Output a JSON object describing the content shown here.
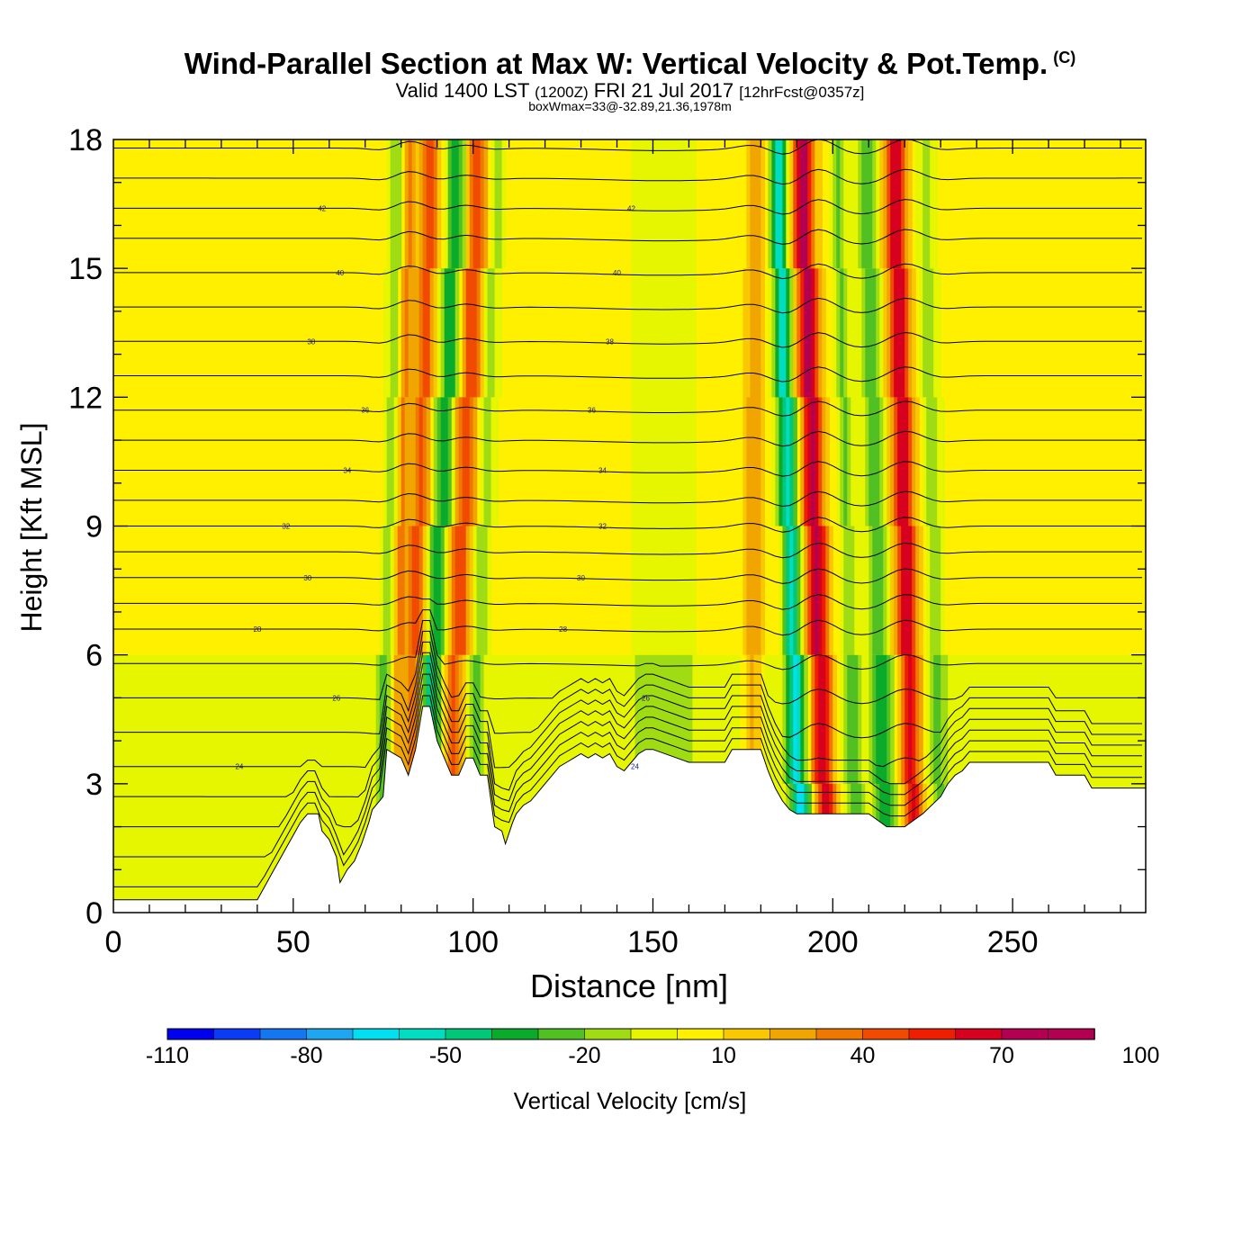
{
  "header": {
    "title": "Wind-Parallel Section at Max W: Vertical Velocity & Pot.Temp.",
    "copyright": "(C)",
    "valid_main": "Valid 1400 LST",
    "valid_z": "(1200Z)",
    "valid_date": "FRI 21 Jul 2017",
    "forecast": "[12hrFcst@0357z]",
    "box_info": "boxWmax=33@-32.89,21.36,1978m"
  },
  "chart_data": {
    "type": "heatmap",
    "title": "Wind-Parallel Section at Max W: Vertical Velocity & Pot.Temp.",
    "xlabel": "Distance [nm]",
    "ylabel": "Height [Kft MSL]",
    "xlim": [
      0,
      287
    ],
    "ylim": [
      0,
      18
    ],
    "x_ticks": [
      0,
      50,
      100,
      150,
      200,
      250
    ],
    "y_ticks": [
      0,
      3,
      6,
      9,
      12,
      15,
      18
    ],
    "background_w": 5,
    "updraft_columns": [
      {
        "x": 77,
        "w": -25,
        "half_width": 2.2,
        "tilt": 0.8
      },
      {
        "x": 80,
        "w": 30,
        "half_width": 2.0,
        "tilt": 0.9
      },
      {
        "x": 85,
        "w": 40,
        "half_width": 2.5,
        "tilt": 1.2
      },
      {
        "x": 91,
        "w": -45,
        "half_width": 2.8,
        "tilt": 1.8
      },
      {
        "x": 97,
        "w": 45,
        "half_width": 3.0,
        "tilt": 1.6
      },
      {
        "x": 103,
        "w": -20,
        "half_width": 2.5,
        "tilt": 1.4
      },
      {
        "x": 153,
        "w": -15,
        "half_width": 9.0,
        "tilt": 0.0
      },
      {
        "x": 178,
        "w": 25,
        "half_width": 2.5,
        "tilt": 0.3
      },
      {
        "x": 188,
        "w": -60,
        "half_width": 2.6,
        "tilt": -1.2
      },
      {
        "x": 195,
        "w": 70,
        "half_width": 3.0,
        "tilt": -1.3
      },
      {
        "x": 204,
        "w": -25,
        "half_width": 2.4,
        "tilt": -1.0
      },
      {
        "x": 212,
        "w": -35,
        "half_width": 2.8,
        "tilt": -1.1
      },
      {
        "x": 220,
        "w": 65,
        "half_width": 3.0,
        "tilt": -1.0
      },
      {
        "x": 228,
        "w": -20,
        "half_width": 2.6,
        "tilt": -0.8
      }
    ],
    "terrain_x": [
      0,
      40,
      42,
      44,
      46,
      48,
      50,
      52,
      54,
      57,
      58,
      60,
      62,
      63,
      65,
      67,
      69,
      71,
      72,
      75,
      76,
      80,
      82,
      84,
      86,
      88,
      90,
      92,
      94,
      96,
      98,
      100,
      102,
      104,
      106,
      108,
      109,
      111,
      112,
      114,
      116,
      118,
      120,
      122,
      124,
      126,
      128,
      130,
      132,
      134,
      136,
      138,
      140,
      142,
      144,
      146,
      148,
      150,
      160,
      170,
      172,
      176,
      180,
      182,
      184,
      186,
      188,
      190,
      195,
      200,
      205,
      210,
      215,
      220,
      225,
      230,
      232,
      234,
      236,
      238,
      240,
      243,
      245,
      250,
      260,
      262,
      270,
      272,
      287
    ],
    "terrain_y": [
      0.3,
      0.3,
      0.6,
      0.9,
      1.2,
      1.5,
      1.8,
      2.1,
      2.3,
      2.3,
      1.9,
      1.7,
      1.3,
      0.7,
      1.0,
      1.2,
      1.6,
      2.1,
      2.4,
      2.7,
      3.8,
      3.6,
      3.2,
      3.8,
      4.8,
      4.8,
      4.0,
      3.6,
      3.2,
      3.2,
      3.6,
      3.6,
      3.2,
      3.2,
      2.0,
      1.9,
      1.6,
      2.1,
      2.3,
      2.5,
      2.6,
      2.8,
      3.0,
      3.2,
      3.4,
      3.5,
      3.6,
      3.7,
      3.6,
      3.7,
      3.6,
      3.7,
      3.4,
      3.3,
      3.5,
      3.7,
      3.8,
      3.8,
      3.5,
      3.5,
      3.8,
      3.8,
      3.8,
      3.3,
      2.9,
      2.6,
      2.4,
      2.3,
      2.3,
      2.3,
      2.3,
      2.3,
      2.0,
      2.0,
      2.3,
      2.7,
      3.0,
      3.2,
      3.3,
      3.5,
      3.5,
      3.5,
      3.5,
      3.5,
      3.5,
      3.2,
      3.2,
      2.9,
      2.9
    ],
    "theta_isentropes": {
      "levels": [
        20,
        21,
        22,
        23,
        24,
        25,
        26,
        27,
        28,
        29,
        30,
        31,
        32,
        33,
        34,
        35,
        36,
        37,
        38,
        39,
        40,
        41,
        42,
        43,
        44
      ],
      "base_height": [
        0.6,
        1.3,
        2.0,
        2.7,
        3.4,
        4.2,
        5.0,
        5.8,
        6.6,
        7.2,
        7.8,
        8.4,
        9.0,
        9.6,
        10.3,
        11.0,
        11.7,
        12.5,
        13.3,
        14.1,
        14.9,
        15.7,
        16.4,
        17.1,
        17.8
      ],
      "labeled": [
        {
          "x": 35,
          "value": "24"
        },
        {
          "x": 62,
          "value": "26"
        },
        {
          "x": 40,
          "value": "28"
        },
        {
          "x": 54,
          "value": "30"
        },
        {
          "x": 48,
          "value": "32"
        },
        {
          "x": 65,
          "value": "34"
        },
        {
          "x": 70,
          "value": "36"
        },
        {
          "x": 55,
          "value": "38"
        },
        {
          "x": 63,
          "value": "40"
        },
        {
          "x": 58,
          "value": "42"
        },
        {
          "x": 145,
          "value": "24"
        },
        {
          "x": 148,
          "value": "26"
        },
        {
          "x": 125,
          "value": "28"
        },
        {
          "x": 130,
          "value": "30"
        },
        {
          "x": 136,
          "value": "32"
        },
        {
          "x": 136,
          "value": "34"
        },
        {
          "x": 133,
          "value": "36"
        },
        {
          "x": 138,
          "value": "38"
        },
        {
          "x": 140,
          "value": "40"
        },
        {
          "x": 144,
          "value": "42"
        }
      ]
    }
  },
  "colorbar": {
    "label": "Vertical Velocity [cm/s]",
    "ticks": [
      "-110",
      "-80",
      "-50",
      "-20",
      "10",
      "40",
      "70",
      "100"
    ],
    "bins": [
      "#0000f0",
      "#0a3cf5",
      "#1476f0",
      "#1ea6f0",
      "#00e0f0",
      "#00ddc0",
      "#00c878",
      "#0aaa2a",
      "#50c023",
      "#a0dc14",
      "#e6f500",
      "#fff000",
      "#fac800",
      "#f0a500",
      "#f07800",
      "#f04b00",
      "#f01e00",
      "#d7001e",
      "#b40050",
      "#b40050"
    ]
  }
}
